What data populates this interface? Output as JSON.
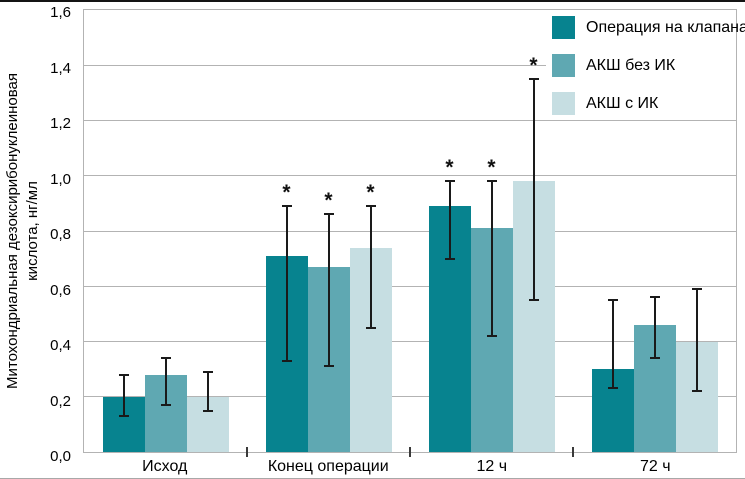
{
  "chart_data": {
    "type": "bar",
    "title": "",
    "ylabel_lines": [
      "Митохондриальная дезоксирибонуклеиновая",
      "кислота, нг/мл"
    ],
    "ylim": [
      0,
      1.6
    ],
    "ytick_step": 0.2,
    "ytick_labels": [
      "0,0",
      "0,2",
      "0,4",
      "0,6",
      "0,8",
      "1,0",
      "1,2",
      "1,4",
      "1,6"
    ],
    "categories": [
      "Исход",
      "Конец операции",
      "12 ч",
      "72 ч"
    ],
    "series": [
      {
        "name": "Операция на клапанах",
        "color": "#07838f",
        "values": [
          0.2,
          0.71,
          0.89,
          0.3
        ],
        "err_low": [
          0.13,
          0.33,
          0.7,
          0.23
        ],
        "err_high": [
          0.28,
          0.89,
          0.98,
          0.55
        ],
        "significant": [
          false,
          true,
          true,
          false
        ]
      },
      {
        "name": "АКШ без ИК",
        "color": "#5fa8b2",
        "values": [
          0.28,
          0.67,
          0.81,
          0.46
        ],
        "err_low": [
          0.17,
          0.31,
          0.42,
          0.34
        ],
        "err_high": [
          0.34,
          0.86,
          0.98,
          0.56
        ],
        "significant": [
          false,
          true,
          true,
          false
        ]
      },
      {
        "name": "АКШ с ИК",
        "color": "#c6dee2",
        "values": [
          0.2,
          0.74,
          0.98,
          0.4
        ],
        "err_low": [
          0.15,
          0.45,
          0.55,
          0.22
        ],
        "err_high": [
          0.29,
          0.89,
          1.35,
          0.59
        ],
        "significant": [
          false,
          true,
          true,
          false
        ]
      }
    ],
    "significance_marker": "*",
    "legend_position": "top-right",
    "grid": true,
    "grid_color": "#b3b3b3",
    "error_bar_color": "#1a1a1a"
  }
}
